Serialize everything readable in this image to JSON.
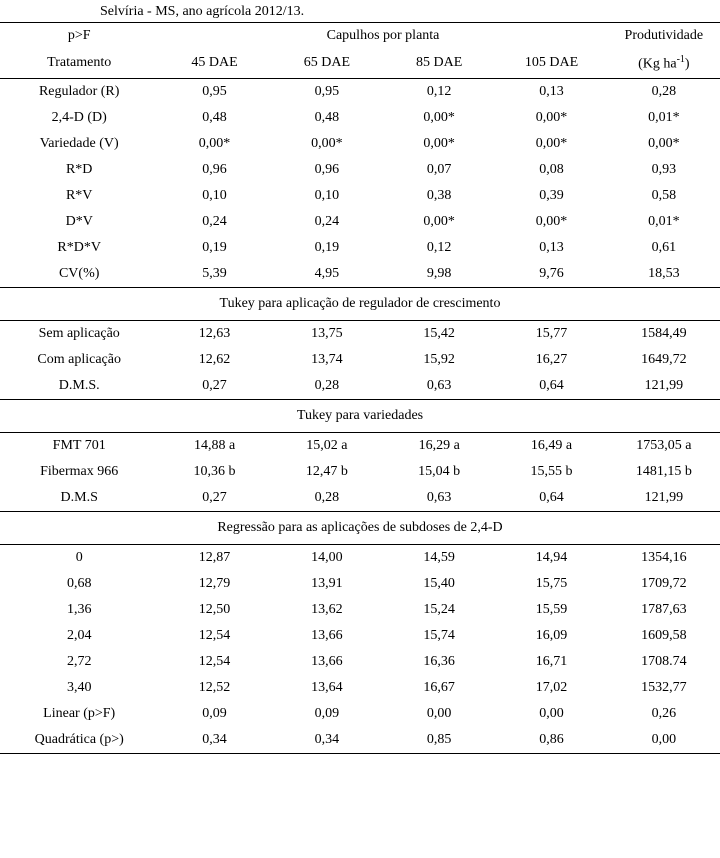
{
  "caption": "Selvíria - MS, ano agrícola 2012/13.",
  "headers": {
    "pF": "p>F",
    "capulhos": "Capulhos por planta",
    "produtividade": "Produtividade",
    "tratamento": "Tratamento",
    "d45": "45 DAE",
    "d65": "65 DAE",
    "d85": "85 DAE",
    "d105": "105 DAE",
    "kgha_pre": "(Kg ha",
    "kgha_sup": "-1",
    "kgha_post": ")"
  },
  "main": [
    {
      "label": "Regulador (R)",
      "c1": "0,95",
      "c2": "0,95",
      "c3": "0,12",
      "c4": "0,13",
      "c5": "0,28"
    },
    {
      "label": "2,4-D (D)",
      "c1": "0,48",
      "c2": "0,48",
      "c3": "0,00*",
      "c4": "0,00*",
      "c5": "0,01*"
    },
    {
      "label": "Variedade (V)",
      "c1": "0,00*",
      "c2": "0,00*",
      "c3": "0,00*",
      "c4": "0,00*",
      "c5": "0,00*"
    },
    {
      "label": "R*D",
      "c1": "0,96",
      "c2": "0,96",
      "c3": "0,07",
      "c4": "0,08",
      "c5": "0,93"
    },
    {
      "label": "R*V",
      "c1": "0,10",
      "c2": "0,10",
      "c3": "0,38",
      "c4": "0,39",
      "c5": "0,58"
    },
    {
      "label": "D*V",
      "c1": "0,24",
      "c2": "0,24",
      "c3": "0,00*",
      "c4": "0,00*",
      "c5": "0,01*"
    },
    {
      "label": "R*D*V",
      "c1": "0,19",
      "c2": "0,19",
      "c3": "0,12",
      "c4": "0,13",
      "c5": "0,61"
    },
    {
      "label": "CV(%)",
      "c1": "5,39",
      "c2": "4,95",
      "c3": "9,98",
      "c4": "9,76",
      "c5": "18,53"
    }
  ],
  "section1": "Tukey para aplicação de regulador de crescimento",
  "tukey1": [
    {
      "label": "Sem aplicação",
      "c1": "12,63",
      "c2": "13,75",
      "c3": "15,42",
      "c4": "15,77",
      "c5": "1584,49"
    },
    {
      "label": "Com aplicação",
      "c1": "12,62",
      "c2": "13,74",
      "c3": "15,92",
      "c4": "16,27",
      "c5": "1649,72"
    },
    {
      "label": "D.M.S.",
      "c1": "0,27",
      "c2": "0,28",
      "c3": "0,63",
      "c4": "0,64",
      "c5": "121,99"
    }
  ],
  "section2": "Tukey para variedades",
  "tukey2": [
    {
      "label": "FMT 701",
      "c1": "14,88 a",
      "c2": "15,02 a",
      "c3": "16,29 a",
      "c4": "16,49 a",
      "c5": "1753,05 a"
    },
    {
      "label": "Fibermax 966",
      "c1": "10,36 b",
      "c2": "12,47 b",
      "c3": "15,04 b",
      "c4": "15,55 b",
      "c5": "1481,15 b"
    },
    {
      "label": "D.M.S",
      "c1": "0,27",
      "c2": "0,28",
      "c3": "0,63",
      "c4": "0,64",
      "c5": "121,99"
    }
  ],
  "section3": "Regressão para as aplicações de subdoses de 2,4-D",
  "reg": [
    {
      "label": "0",
      "c1": "12,87",
      "c2": "14,00",
      "c3": "14,59",
      "c4": "14,94",
      "c5": "1354,16"
    },
    {
      "label": "0,68",
      "c1": "12,79",
      "c2": "13,91",
      "c3": "15,40",
      "c4": "15,75",
      "c5": "1709,72"
    },
    {
      "label": "1,36",
      "c1": "12,50",
      "c2": "13,62",
      "c3": "15,24",
      "c4": "15,59",
      "c5": "1787,63"
    },
    {
      "label": "2,04",
      "c1": "12,54",
      "c2": "13,66",
      "c3": "15,74",
      "c4": "16,09",
      "c5": "1609,58"
    },
    {
      "label": "2,72",
      "c1": "12,54",
      "c2": "13,66",
      "c3": "16,36",
      "c4": "16,71",
      "c5": "1708.74"
    },
    {
      "label": "3,40",
      "c1": "12,52",
      "c2": "13,64",
      "c3": "16,67",
      "c4": "17,02",
      "c5": "1532,77"
    },
    {
      "label": "Linear (p>F)",
      "c1": "0,09",
      "c2": "0,09",
      "c3": "0,00",
      "c4": "0,00",
      "c5": "0,26"
    },
    {
      "label": "Quadrática (p>)",
      "c1": "0,34",
      "c2": "0,34",
      "c3": "0,85",
      "c4": "0,86",
      "c5": "0,00"
    }
  ]
}
